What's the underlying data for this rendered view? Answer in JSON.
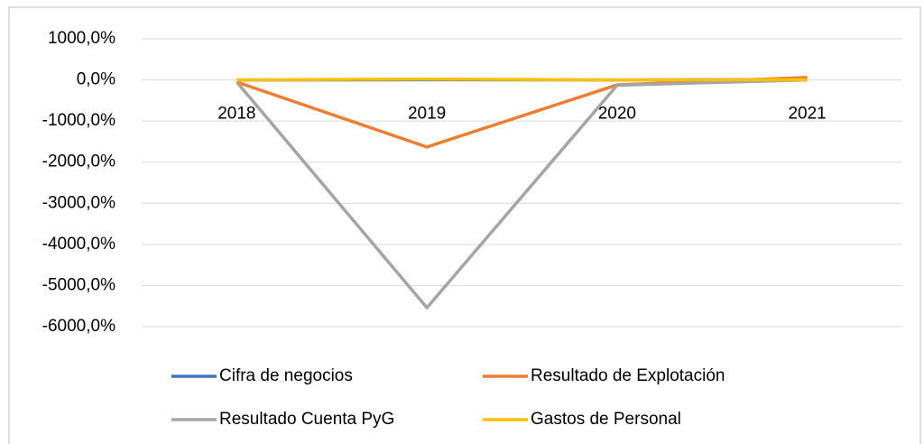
{
  "chart_data": {
    "type": "line",
    "categories": [
      "2018",
      "2019",
      "2020",
      "2021"
    ],
    "series": [
      {
        "name": "Cifra de negocios",
        "color": "#4472c4",
        "values": [
          0,
          5,
          0,
          10
        ]
      },
      {
        "name": "Resultado de Explotación",
        "color": "#ed7d31",
        "values": [
          -50,
          -1630,
          -120,
          60
        ]
      },
      {
        "name": "Resultado Cuenta PyG",
        "color": "#a5a5a5",
        "values": [
          -50,
          -5540,
          -130,
          0
        ]
      },
      {
        "name": "Gastos de Personal",
        "color": "#ffc000",
        "values": [
          0,
          20,
          0,
          5
        ]
      }
    ],
    "ylim": [
      -6000,
      1000
    ],
    "yticks": [
      {
        "value": -6000,
        "label": "-6000,0%"
      },
      {
        "value": -5000,
        "label": "-5000,0%"
      },
      {
        "value": -4000,
        "label": "-4000,0%"
      },
      {
        "value": -3000,
        "label": "-3000,0%"
      },
      {
        "value": -2000,
        "label": "-2000,0%"
      },
      {
        "value": -1000,
        "label": "-1000,0%"
      },
      {
        "value": 0,
        "label": "0,0%"
      },
      {
        "value": 1000,
        "label": "1000,0%"
      }
    ],
    "grid": true,
    "legend": "bottom"
  }
}
